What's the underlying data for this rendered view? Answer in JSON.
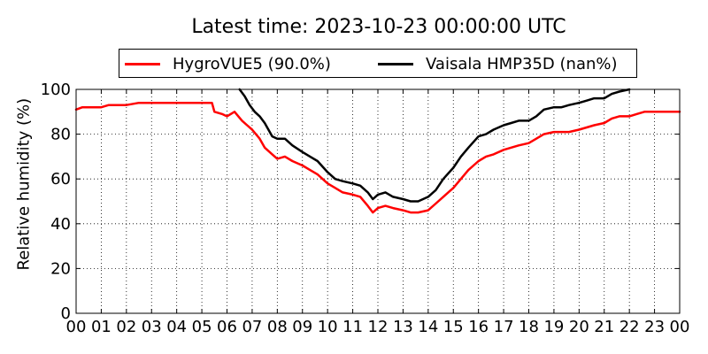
{
  "chart_data": {
    "type": "line",
    "title": "Latest time: 2023-10-23 00:00:00 UTC",
    "xlabel": "",
    "ylabel": "Relative humidity (%)",
    "xlim": [
      0,
      24
    ],
    "ylim": [
      0,
      100
    ],
    "x_ticks": [
      "00",
      "01",
      "02",
      "03",
      "04",
      "05",
      "06",
      "07",
      "08",
      "09",
      "10",
      "11",
      "12",
      "13",
      "14",
      "15",
      "16",
      "17",
      "18",
      "19",
      "20",
      "21",
      "22",
      "23",
      "00"
    ],
    "y_ticks": [
      0,
      20,
      40,
      60,
      80,
      100
    ],
    "grid": true,
    "legend_position": "top",
    "series": [
      {
        "name": "HygroVUE5 (90.0%)",
        "color": "#ff0000",
        "points": [
          [
            0.0,
            91
          ],
          [
            0.25,
            92
          ],
          [
            1.0,
            92
          ],
          [
            1.3,
            93
          ],
          [
            2.0,
            93
          ],
          [
            2.5,
            94
          ],
          [
            3.0,
            94
          ],
          [
            3.5,
            94
          ],
          [
            4.0,
            94
          ],
          [
            4.5,
            94
          ],
          [
            5.0,
            94
          ],
          [
            5.4,
            94
          ],
          [
            5.5,
            90
          ],
          [
            5.8,
            89
          ],
          [
            6.0,
            88
          ],
          [
            6.3,
            90
          ],
          [
            6.6,
            86
          ],
          [
            6.8,
            84
          ],
          [
            7.0,
            82
          ],
          [
            7.3,
            78
          ],
          [
            7.5,
            74
          ],
          [
            7.8,
            71
          ],
          [
            8.0,
            69
          ],
          [
            8.3,
            70
          ],
          [
            8.6,
            68
          ],
          [
            9.0,
            66
          ],
          [
            9.3,
            64
          ],
          [
            9.6,
            62
          ],
          [
            10.0,
            58
          ],
          [
            10.3,
            56
          ],
          [
            10.6,
            54
          ],
          [
            11.0,
            53
          ],
          [
            11.3,
            52
          ],
          [
            11.6,
            48
          ],
          [
            11.8,
            45
          ],
          [
            12.0,
            47
          ],
          [
            12.3,
            48
          ],
          [
            12.6,
            47
          ],
          [
            13.0,
            46
          ],
          [
            13.3,
            45
          ],
          [
            13.6,
            45
          ],
          [
            14.0,
            46
          ],
          [
            14.3,
            49
          ],
          [
            14.6,
            52
          ],
          [
            15.0,
            56
          ],
          [
            15.3,
            60
          ],
          [
            15.6,
            64
          ],
          [
            16.0,
            68
          ],
          [
            16.3,
            70
          ],
          [
            16.6,
            71
          ],
          [
            17.0,
            73
          ],
          [
            17.3,
            74
          ],
          [
            17.6,
            75
          ],
          [
            18.0,
            76
          ],
          [
            18.3,
            78
          ],
          [
            18.6,
            80
          ],
          [
            19.0,
            81
          ],
          [
            19.3,
            81
          ],
          [
            19.6,
            81
          ],
          [
            20.0,
            82
          ],
          [
            20.3,
            83
          ],
          [
            20.6,
            84
          ],
          [
            21.0,
            85
          ],
          [
            21.3,
            87
          ],
          [
            21.6,
            88
          ],
          [
            22.0,
            88
          ],
          [
            22.3,
            89
          ],
          [
            22.6,
            90
          ],
          [
            23.0,
            90
          ],
          [
            23.5,
            90
          ],
          [
            24.0,
            90
          ]
        ]
      },
      {
        "name": "Vaisala HMP35D (nan%)",
        "color": "#000000",
        "points": [
          [
            6.5,
            100
          ],
          [
            6.7,
            97
          ],
          [
            6.9,
            93
          ],
          [
            7.1,
            90
          ],
          [
            7.3,
            88
          ],
          [
            7.5,
            85
          ],
          [
            7.8,
            79
          ],
          [
            8.0,
            78
          ],
          [
            8.3,
            78
          ],
          [
            8.6,
            75
          ],
          [
            9.0,
            72
          ],
          [
            9.3,
            70
          ],
          [
            9.6,
            68
          ],
          [
            10.0,
            63
          ],
          [
            10.3,
            60
          ],
          [
            10.6,
            59
          ],
          [
            11.0,
            58
          ],
          [
            11.3,
            57
          ],
          [
            11.6,
            54
          ],
          [
            11.8,
            51
          ],
          [
            12.0,
            53
          ],
          [
            12.3,
            54
          ],
          [
            12.6,
            52
          ],
          [
            13.0,
            51
          ],
          [
            13.3,
            50
          ],
          [
            13.6,
            50
          ],
          [
            14.0,
            52
          ],
          [
            14.3,
            55
          ],
          [
            14.6,
            60
          ],
          [
            15.0,
            65
          ],
          [
            15.3,
            70
          ],
          [
            15.6,
            74
          ],
          [
            16.0,
            79
          ],
          [
            16.3,
            80
          ],
          [
            16.6,
            82
          ],
          [
            17.0,
            84
          ],
          [
            17.3,
            85
          ],
          [
            17.6,
            86
          ],
          [
            18.0,
            86
          ],
          [
            18.3,
            88
          ],
          [
            18.6,
            91
          ],
          [
            19.0,
            92
          ],
          [
            19.3,
            92
          ],
          [
            19.6,
            93
          ],
          [
            20.0,
            94
          ],
          [
            20.3,
            95
          ],
          [
            20.6,
            96
          ],
          [
            21.0,
            96
          ],
          [
            21.3,
            98
          ],
          [
            21.6,
            99
          ],
          [
            22.0,
            100
          ]
        ]
      }
    ]
  }
}
